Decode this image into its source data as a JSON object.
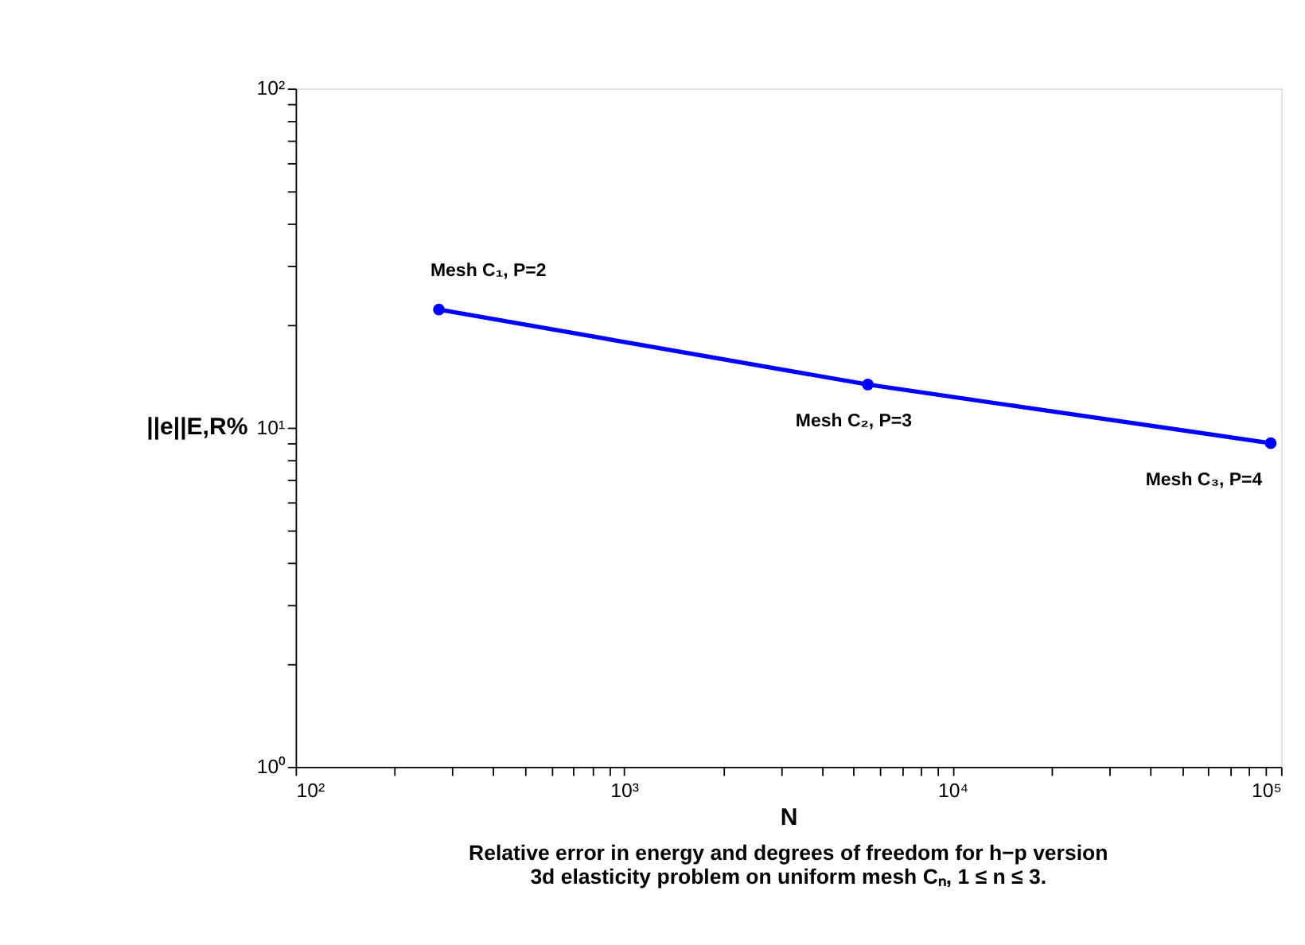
{
  "chart_data": {
    "type": "line",
    "xlabel": "N",
    "ylabel": "||e||E,R%",
    "x": [
      273,
      5520,
      93000
    ],
    "series": [
      {
        "color": "#0000ff",
        "values": [
          22.3,
          13.4,
          9.0
        ]
      }
    ],
    "marker": "circle",
    "line_style": "solid",
    "log": "xy",
    "grid": false,
    "xlim": [
      100,
      100000
    ],
    "ylim": [
      1,
      100
    ],
    "xticks": [
      {
        "value": 100,
        "label": "10²"
      },
      {
        "value": 200,
        "label": null
      },
      {
        "value": 300,
        "label": null
      },
      {
        "value": 400,
        "label": null
      },
      {
        "value": 500,
        "label": null
      },
      {
        "value": 600,
        "label": null
      },
      {
        "value": 700,
        "label": null
      },
      {
        "value": 800,
        "label": null
      },
      {
        "value": 900,
        "label": null
      },
      {
        "value": 1000,
        "label": "10³"
      },
      {
        "value": 2000,
        "label": null
      },
      {
        "value": 3000,
        "label": null
      },
      {
        "value": 4000,
        "label": null
      },
      {
        "value": 5000,
        "label": null
      },
      {
        "value": 6000,
        "label": null
      },
      {
        "value": 7000,
        "label": null
      },
      {
        "value": 8000,
        "label": null
      },
      {
        "value": 9000,
        "label": null
      },
      {
        "value": 10000,
        "label": "10⁴"
      },
      {
        "value": 20000,
        "label": null
      },
      {
        "value": 30000,
        "label": null
      },
      {
        "value": 40000,
        "label": null
      },
      {
        "value": 50000,
        "label": null
      },
      {
        "value": 60000,
        "label": null
      },
      {
        "value": 70000,
        "label": null
      },
      {
        "value": 80000,
        "label": null
      },
      {
        "value": 90000,
        "label": null
      },
      {
        "value": 100000,
        "label": "10⁵"
      }
    ],
    "yticks": [
      {
        "value": 1,
        "label": "10⁰"
      },
      {
        "value": 2,
        "label": null
      },
      {
        "value": 3,
        "label": null
      },
      {
        "value": 4,
        "label": null
      },
      {
        "value": 5,
        "label": null
      },
      {
        "value": 6,
        "label": null
      },
      {
        "value": 7,
        "label": null
      },
      {
        "value": 8,
        "label": null
      },
      {
        "value": 9,
        "label": null
      },
      {
        "value": 10,
        "label": "10¹"
      },
      {
        "value": 20,
        "label": null
      },
      {
        "value": 30,
        "label": null
      },
      {
        "value": 40,
        "label": null
      },
      {
        "value": 50,
        "label": null
      },
      {
        "value": 60,
        "label": null
      },
      {
        "value": 70,
        "label": null
      },
      {
        "value": 80,
        "label": null
      },
      {
        "value": 90,
        "label": null
      },
      {
        "value": 100,
        "label": "10²"
      }
    ],
    "annotations": [
      {
        "text": "Mesh C₁, P=2",
        "x": 273,
        "y": 22.3
      },
      {
        "text": "Mesh C₂, P=3",
        "x": 5520,
        "y": 13.4
      },
      {
        "text": "Mesh C₃, P=4",
        "x": 93000,
        "y": 9.0
      },
      "Relative error in energy and degrees of freedom for h−p version",
      "3d elasticity problem on uniform mesh Cₙ, 1 ≤ n ≤ 3."
    ]
  }
}
